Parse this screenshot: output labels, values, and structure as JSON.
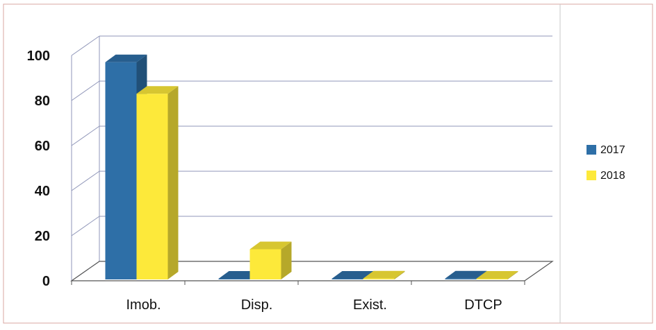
{
  "chart_data": {
    "type": "bar",
    "categories": [
      "Imob.",
      "Disp.",
      "Exist.",
      "DTCP"
    ],
    "series": [
      {
        "name": "2017",
        "values": [
          97,
          0,
          0,
          1
        ],
        "color": "#2e6fa7"
      },
      {
        "name": "2018",
        "values": [
          83,
          14,
          1,
          0
        ],
        "color": "#fde93a"
      }
    ],
    "ylim": [
      0,
      100
    ],
    "yticks": [
      "0",
      "20",
      "40",
      "60",
      "80",
      "100"
    ],
    "grid": true,
    "legend_position": "right",
    "style": "3d-column"
  }
}
